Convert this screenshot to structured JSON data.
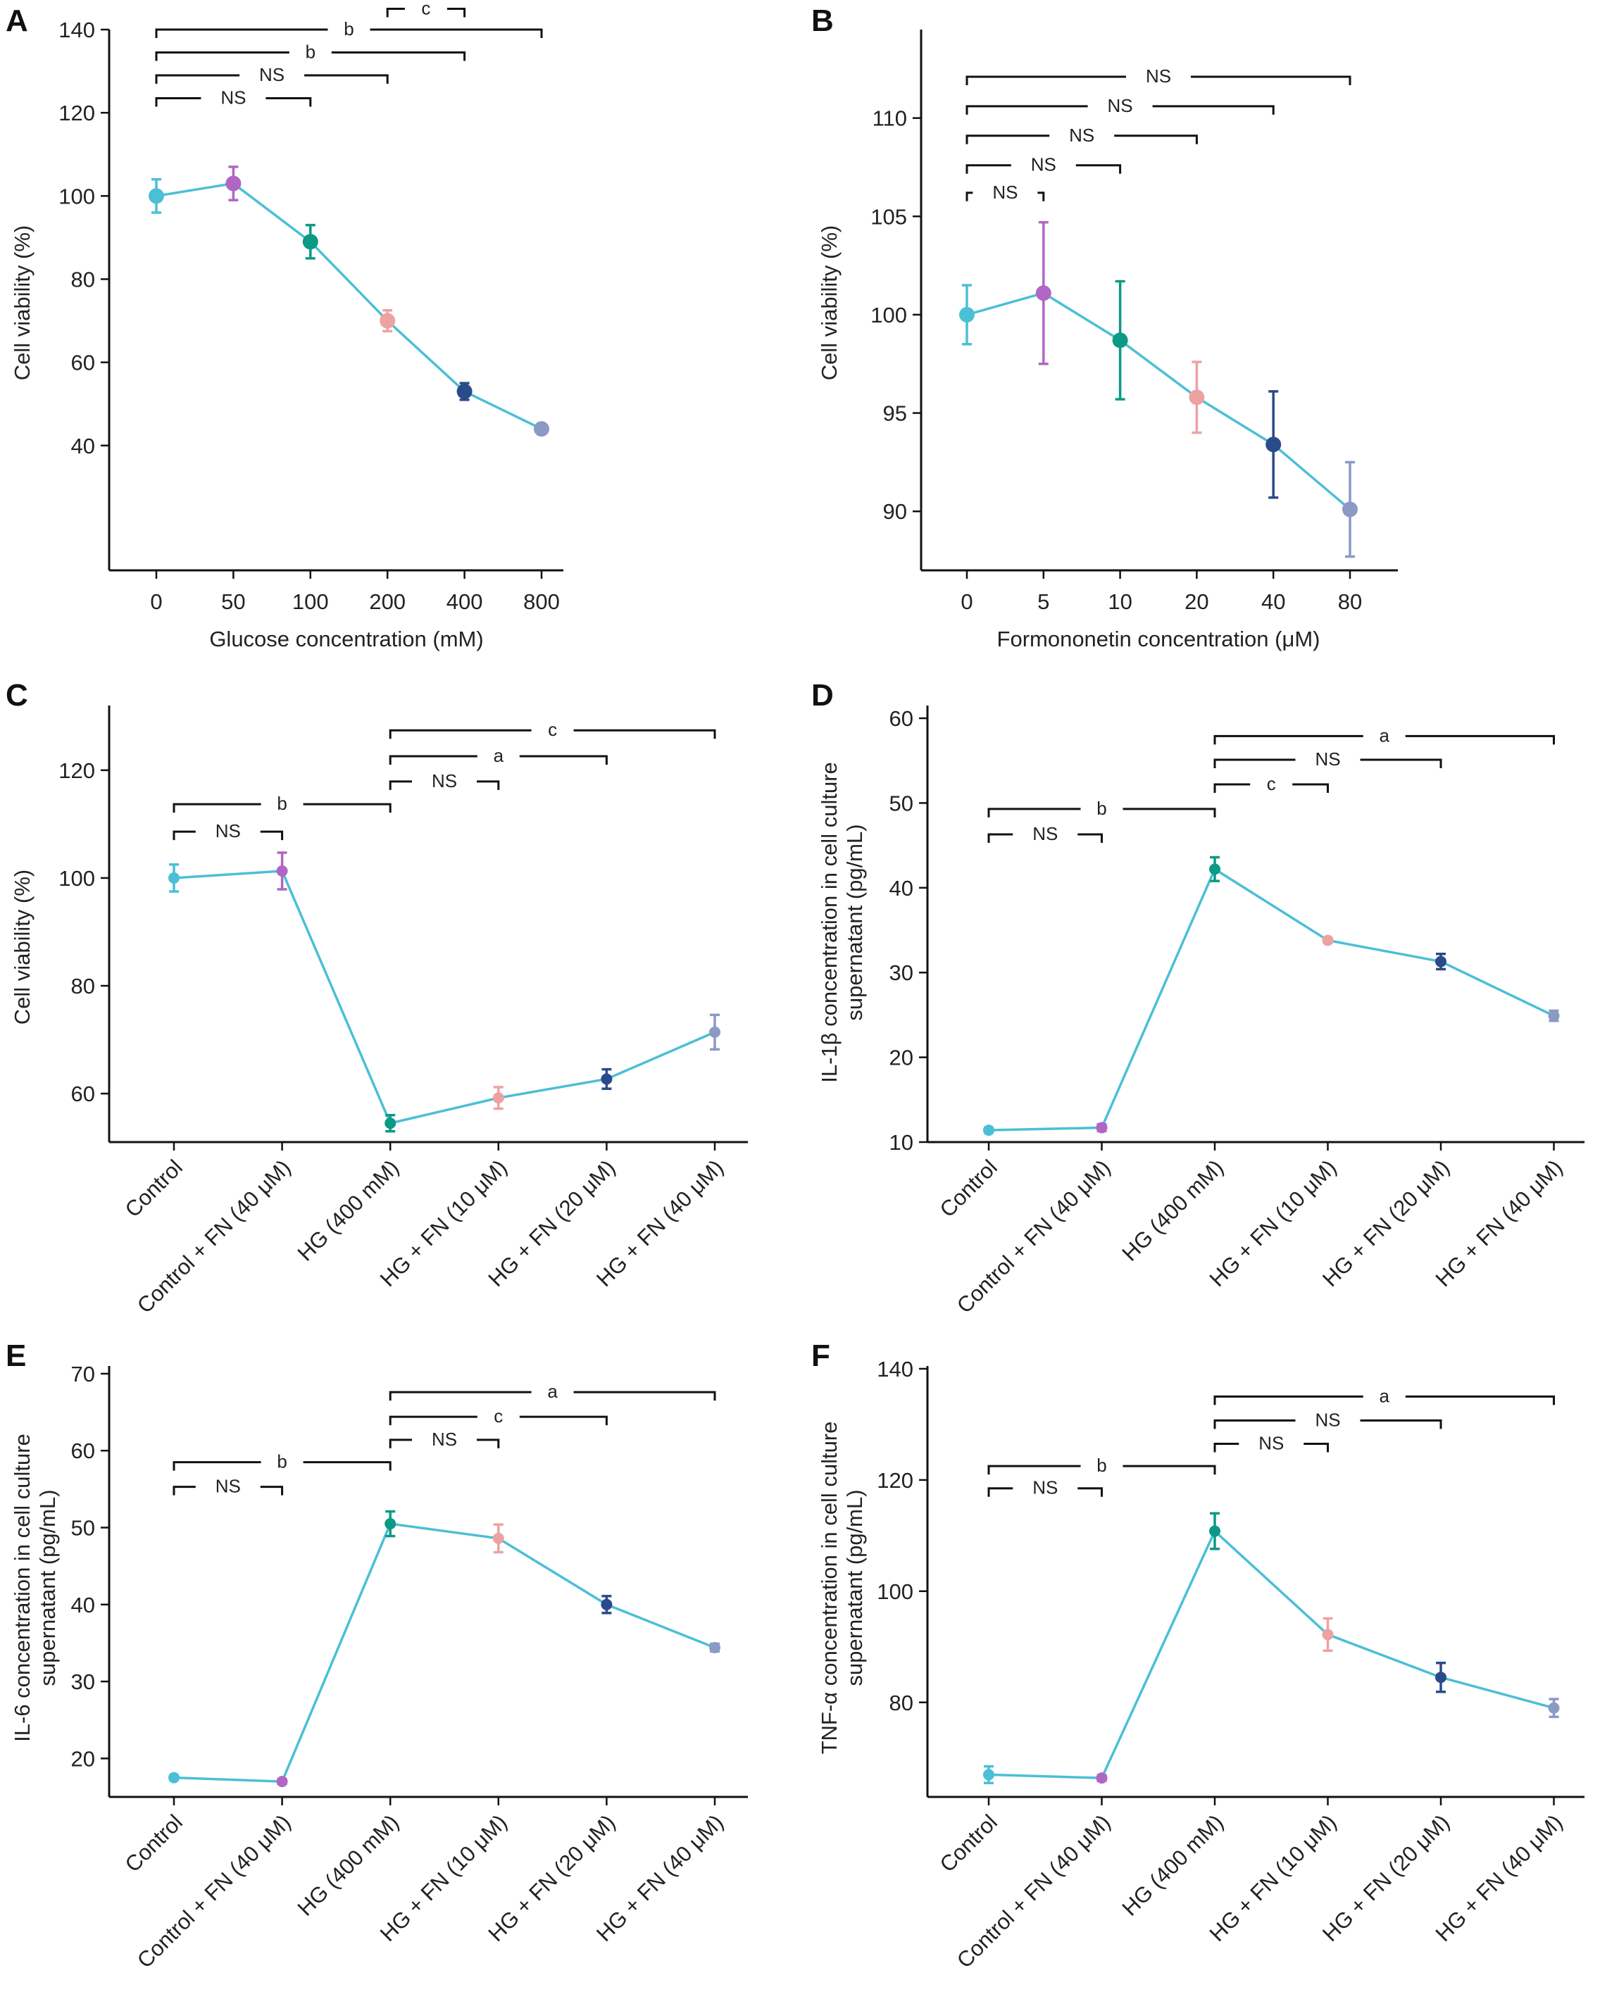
{
  "figure": {
    "colors": {
      "line": "#4bbfd6",
      "points": [
        "#4bbfd6",
        "#b066c4",
        "#0a9a85",
        "#eda2a2",
        "#2b4a8a",
        "#8b9ac4"
      ],
      "axis": "#111111"
    }
  },
  "chart_data": [
    {
      "id": "A",
      "panel_label": "A",
      "type": "line",
      "categories": [
        "0",
        "50",
        "100",
        "200",
        "400",
        "800"
      ],
      "values": [
        100,
        103,
        89,
        70,
        53,
        44
      ],
      "errors": [
        4,
        4,
        4,
        2.5,
        2,
        1
      ],
      "xlabel": "Glucose concentration (mM)",
      "ylabel": "Cell viability (%)",
      "ylim": [
        10,
        140
      ],
      "yticks": [
        40,
        60,
        80,
        100,
        120,
        140
      ],
      "brackets": [
        {
          "from": 0,
          "to": 2,
          "level": 123.5,
          "label": "NS"
        },
        {
          "from": 0,
          "to": 3,
          "level": 129,
          "label": "NS"
        },
        {
          "from": 0,
          "to": 4,
          "level": 134.5,
          "label": "b"
        },
        {
          "from": 0,
          "to": 5,
          "level": 140,
          "label": "b"
        },
        {
          "from": 3,
          "to": 4,
          "level": 145,
          "label": "c"
        }
      ]
    },
    {
      "id": "B",
      "panel_label": "B",
      "type": "line",
      "categories": [
        "0",
        "5",
        "10",
        "20",
        "40",
        "80"
      ],
      "values": [
        100,
        101.1,
        98.7,
        95.8,
        93.4,
        90.1
      ],
      "errors": [
        1.5,
        3.6,
        3,
        1.8,
        2.7,
        2.4
      ],
      "xlabel": "Formononetin concentration (μM)",
      "ylabel": "Cell viability (%)",
      "ylim": [
        87,
        114.5
      ],
      "yticks": [
        90,
        95,
        100,
        105,
        110
      ],
      "brackets": [
        {
          "from": 0,
          "to": 1,
          "level": 106.2,
          "label": "NS"
        },
        {
          "from": 0,
          "to": 2,
          "level": 107.6,
          "label": "NS"
        },
        {
          "from": 0,
          "to": 3,
          "level": 109.1,
          "label": "NS"
        },
        {
          "from": 0,
          "to": 4,
          "level": 110.6,
          "label": "NS"
        },
        {
          "from": 0,
          "to": 5,
          "level": 112.1,
          "label": "NS"
        }
      ]
    },
    {
      "id": "C",
      "panel_label": "C",
      "type": "line",
      "categories": [
        "Control",
        "Control + FN (40 μM)",
        "HG (400 mM)",
        "HG + FN (10 μM)",
        "HG + FN (20 μM)",
        "HG + FN (40 μM)"
      ],
      "values": [
        100,
        101.3,
        54.5,
        59.2,
        62.7,
        71.4
      ],
      "errors": [
        2.5,
        3.4,
        1.5,
        2,
        1.8,
        3.2
      ],
      "xlabel": "",
      "ylabel": "Cell viability (%)",
      "ylim": [
        51,
        132
      ],
      "yticks": [
        60,
        80,
        100,
        120
      ],
      "brackets": [
        {
          "from": 0,
          "to": 1,
          "level": 108.6,
          "label": "NS"
        },
        {
          "from": 0,
          "to": 2,
          "level": 113.7,
          "label": "b"
        },
        {
          "from": 2,
          "to": 3,
          "level": 117.9,
          "label": "NS"
        },
        {
          "from": 2,
          "to": 4,
          "level": 122.6,
          "label": "a"
        },
        {
          "from": 2,
          "to": 5,
          "level": 127.4,
          "label": "c"
        }
      ]
    },
    {
      "id": "D",
      "panel_label": "D",
      "type": "line",
      "categories": [
        "Control",
        "Control + FN (40 μM)",
        "HG (400 mM)",
        "HG + FN (10 μM)",
        "HG + FN (20 μM)",
        "HG + FN (40 μM)"
      ],
      "values": [
        11.4,
        11.7,
        42.2,
        33.8,
        31.3,
        24.9
      ],
      "errors": [
        0.3,
        0.4,
        1.4,
        0.3,
        0.9,
        0.6
      ],
      "xlabel": "",
      "ylabel": "IL-1β concentration in cell culture supernatant (pg/mL)",
      "ylim": [
        10,
        61.5
      ],
      "yticks": [
        10,
        20,
        30,
        40,
        50,
        60
      ],
      "brackets": [
        {
          "from": 0,
          "to": 1,
          "level": 46.3,
          "label": "NS"
        },
        {
          "from": 0,
          "to": 2,
          "level": 49.3,
          "label": "b"
        },
        {
          "from": 2,
          "to": 3,
          "level": 52.2,
          "label": "c"
        },
        {
          "from": 2,
          "to": 4,
          "level": 55.1,
          "label": "NS"
        },
        {
          "from": 2,
          "to": 5,
          "level": 57.9,
          "label": "a"
        }
      ]
    },
    {
      "id": "E",
      "panel_label": "E",
      "type": "line",
      "categories": [
        "Control",
        "Control + FN (40 μM)",
        "HG (400 mM)",
        "HG + FN (10 μM)",
        "HG + FN (20 μM)",
        "HG + FN (40 μM)"
      ],
      "values": [
        17.5,
        17,
        50.5,
        48.6,
        40,
        34.4
      ],
      "errors": [
        0.3,
        0.3,
        1.6,
        1.8,
        1.1,
        0.5
      ],
      "xlabel": "",
      "ylabel": "IL-6 concentration in cell culture supernatant (pg/mL)",
      "ylim": [
        15,
        71
      ],
      "yticks": [
        20,
        30,
        40,
        50,
        60,
        70
      ],
      "brackets": [
        {
          "from": 0,
          "to": 1,
          "level": 55.3,
          "label": "NS"
        },
        {
          "from": 0,
          "to": 2,
          "level": 58.5,
          "label": "b"
        },
        {
          "from": 2,
          "to": 3,
          "level": 61.4,
          "label": "NS"
        },
        {
          "from": 2,
          "to": 4,
          "level": 64.4,
          "label": "c"
        },
        {
          "from": 2,
          "to": 5,
          "level": 67.6,
          "label": "a"
        }
      ]
    },
    {
      "id": "F",
      "panel_label": "F",
      "type": "line",
      "categories": [
        "Control",
        "Control + FN (40 μM)",
        "HG (400 mM)",
        "HG + FN (10 μM)",
        "HG + FN (20 μM)",
        "HG + FN (40 μM)"
      ],
      "values": [
        67,
        66.4,
        110.8,
        92.2,
        84.5,
        79
      ],
      "errors": [
        1.5,
        0.5,
        3.2,
        2.9,
        2.6,
        1.6
      ],
      "xlabel": "",
      "ylabel": "TNF-α concentration in cell culture supernatant (pg/mL)",
      "ylim": [
        63,
        140.5
      ],
      "yticks": [
        80,
        100,
        120,
        140
      ],
      "brackets": [
        {
          "from": 0,
          "to": 1,
          "level": 118.5,
          "label": "NS"
        },
        {
          "from": 0,
          "to": 2,
          "level": 122.5,
          "label": "b"
        },
        {
          "from": 2,
          "to": 3,
          "level": 126.5,
          "label": "NS"
        },
        {
          "from": 2,
          "to": 4,
          "level": 130.7,
          "label": "NS"
        },
        {
          "from": 2,
          "to": 5,
          "level": 135,
          "label": "a"
        }
      ]
    }
  ]
}
